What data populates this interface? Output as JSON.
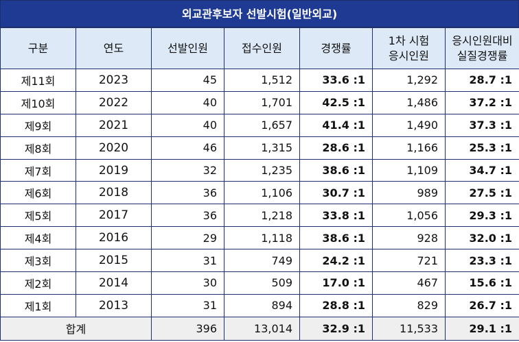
{
  "title": "외교관후보자 선발시험(일반외교)",
  "headers": [
    "구분",
    "연도",
    "선발인원",
    "접수인원",
    "경쟁률",
    "1차 시험\n응시인원",
    "응시인원대비\n실질경쟁률"
  ],
  "rows": [
    {
      "label": "제11회",
      "year": "2023",
      "selected": "45",
      "applied": "1,512",
      "ratio": "33.6 :1",
      "taken": "1,292",
      "real": "28.7 :1"
    },
    {
      "label": "제10회",
      "year": "2022",
      "selected": "40",
      "applied": "1,701",
      "ratio": "42.5 :1",
      "taken": "1,486",
      "real": "37.2 :1"
    },
    {
      "label": "제9회",
      "year": "2021",
      "selected": "40",
      "applied": "1,657",
      "ratio": "41.4 :1",
      "taken": "1,490",
      "real": "37.3 :1"
    },
    {
      "label": "제8회",
      "year": "2020",
      "selected": "46",
      "applied": "1,315",
      "ratio": "28.6 :1",
      "taken": "1,166",
      "real": "25.3 :1"
    },
    {
      "label": "제7회",
      "year": "2019",
      "selected": "32",
      "applied": "1,235",
      "ratio": "38.6 :1",
      "taken": "1,109",
      "real": "34.7 :1"
    },
    {
      "label": "제6회",
      "year": "2018",
      "selected": "36",
      "applied": "1,106",
      "ratio": "30.7 :1",
      "taken": "989",
      "real": "27.5 :1"
    },
    {
      "label": "제5회",
      "year": "2017",
      "selected": "36",
      "applied": "1,218",
      "ratio": "33.8 :1",
      "taken": "1,056",
      "real": "29.3 :1"
    },
    {
      "label": "제4회",
      "year": "2016",
      "selected": "29",
      "applied": "1,118",
      "ratio": "38.6 :1",
      "taken": "928",
      "real": "32.0 :1"
    },
    {
      "label": "제3회",
      "year": "2015",
      "selected": "31",
      "applied": "749",
      "ratio": "24.2 :1",
      "taken": "721",
      "real": "23.3 :1"
    },
    {
      "label": "제2회",
      "year": "2014",
      "selected": "30",
      "applied": "509",
      "ratio": "17.0 :1",
      "taken": "467",
      "real": "15.6 :1"
    },
    {
      "label": "제1회",
      "year": "2013",
      "selected": "31",
      "applied": "894",
      "ratio": "28.8 :1",
      "taken": "829",
      "real": "26.7 :1"
    }
  ],
  "total": {
    "label": "합계",
    "selected": "396",
    "applied": "13,014",
    "ratio": "32.9 :1",
    "taken": "11,533",
    "real": "29.1 :1"
  },
  "colors": {
    "title_bg": "#1f3a93",
    "header_bg": "#dde9f7",
    "total_bg": "#efefef",
    "border": "#1c2f6b"
  }
}
